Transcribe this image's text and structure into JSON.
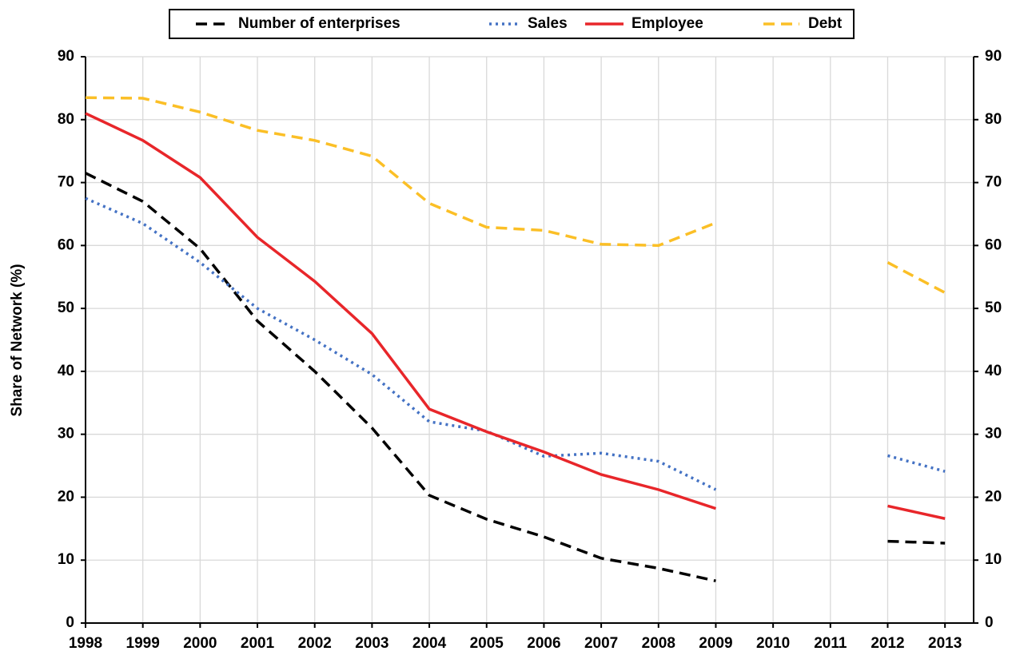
{
  "chart_data": {
    "type": "line",
    "y_label": "Share of Network (%)",
    "x": [
      1998,
      1999,
      2000,
      2001,
      2002,
      2003,
      2004,
      2005,
      2006,
      2007,
      2008,
      2009,
      2010,
      2011,
      2012,
      2013
    ],
    "series": [
      {
        "name": "Number of enterprises",
        "color": "#000000",
        "dash": "dashed",
        "values": [
          71.5,
          67,
          59.5,
          48,
          40,
          31,
          20.3,
          16.5,
          13.7,
          10.3,
          8.7,
          6.7,
          null,
          null,
          13,
          12.7
        ]
      },
      {
        "name": "Sales",
        "color": "#4472c4",
        "dash": "dotted",
        "values": [
          67.5,
          63.5,
          57.3,
          50,
          45,
          39.5,
          32,
          30.5,
          26.5,
          27,
          25.7,
          21.2,
          null,
          null,
          26.6,
          24.1
        ]
      },
      {
        "name": "Employee",
        "color": "#e8262a",
        "dash": "solid",
        "values": [
          81,
          76.7,
          70.8,
          61.3,
          54.3,
          46,
          34,
          30.4,
          27.2,
          23.6,
          21.2,
          18.2,
          null,
          null,
          18.6,
          16.6
        ]
      },
      {
        "name": "Debt",
        "color": "#fbbf26",
        "dash": "dashed",
        "values": [
          83.5,
          83.4,
          81.2,
          78.3,
          76.7,
          74.2,
          66.7,
          62.9,
          62.4,
          60.2,
          60,
          63.6,
          null,
          null,
          57.3,
          52.5
        ]
      }
    ],
    "xlim": [
      1998,
      2013.5
    ],
    "xticks": [
      1998,
      1999,
      2000,
      2001,
      2002,
      2003,
      2004,
      2005,
      2006,
      2007,
      2008,
      2009,
      2010,
      2011,
      2012,
      2013
    ],
    "ylim": [
      0,
      90
    ],
    "yticks": [
      0,
      10,
      20,
      30,
      40,
      50,
      60,
      70,
      80,
      90
    ],
    "y2lim": [
      0,
      90
    ],
    "y2ticks": [
      0,
      10,
      20,
      30,
      40,
      50,
      60,
      70,
      80,
      90
    ],
    "grid": true,
    "legend": "top"
  }
}
